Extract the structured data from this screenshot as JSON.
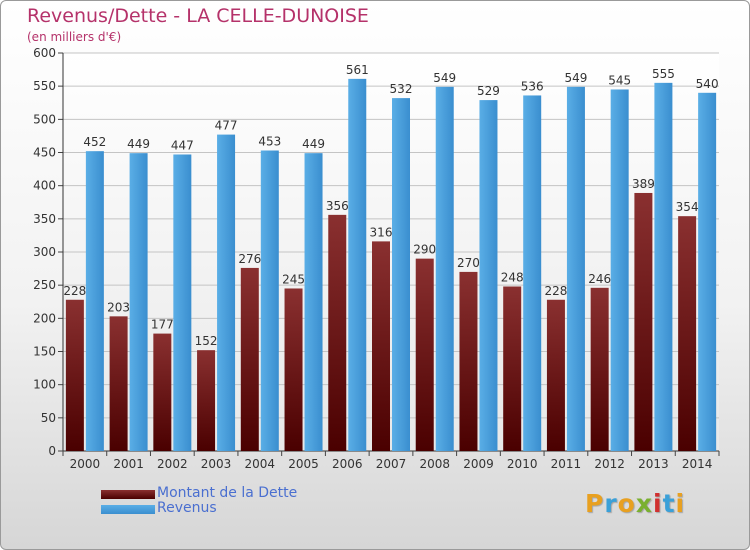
{
  "title": "Revenus/Dette - LA CELLE-DUNOISE",
  "subtitle": "(en milliers d'€)",
  "colors": {
    "title": "#b5326a",
    "dette": "#7a1a1a",
    "revenus": "#3a9ad8",
    "legend_text": "#4a6fd0"
  },
  "logo_text": "Proxiti",
  "chart_data": {
    "type": "bar",
    "categories": [
      "2000",
      "2001",
      "2002",
      "2003",
      "2004",
      "2005",
      "2006",
      "2007",
      "2008",
      "2009",
      "2010",
      "2011",
      "2012",
      "2013",
      "2014"
    ],
    "series": [
      {
        "name": "Montant de la Dette",
        "color": "#7a1a1a",
        "values": [
          228,
          203,
          177,
          152,
          276,
          245,
          356,
          316,
          290,
          270,
          248,
          228,
          246,
          389,
          354
        ]
      },
      {
        "name": "Revenus",
        "color": "#3a9ad8",
        "values": [
          452,
          449,
          447,
          477,
          453,
          449,
          561,
          532,
          549,
          529,
          536,
          549,
          545,
          555,
          540
        ]
      }
    ],
    "ylim": [
      0,
      600
    ],
    "yticks": [
      0,
      50,
      100,
      150,
      200,
      250,
      300,
      350,
      400,
      450,
      500,
      550,
      600
    ],
    "grid": true,
    "legend_position": "bottom-left"
  }
}
